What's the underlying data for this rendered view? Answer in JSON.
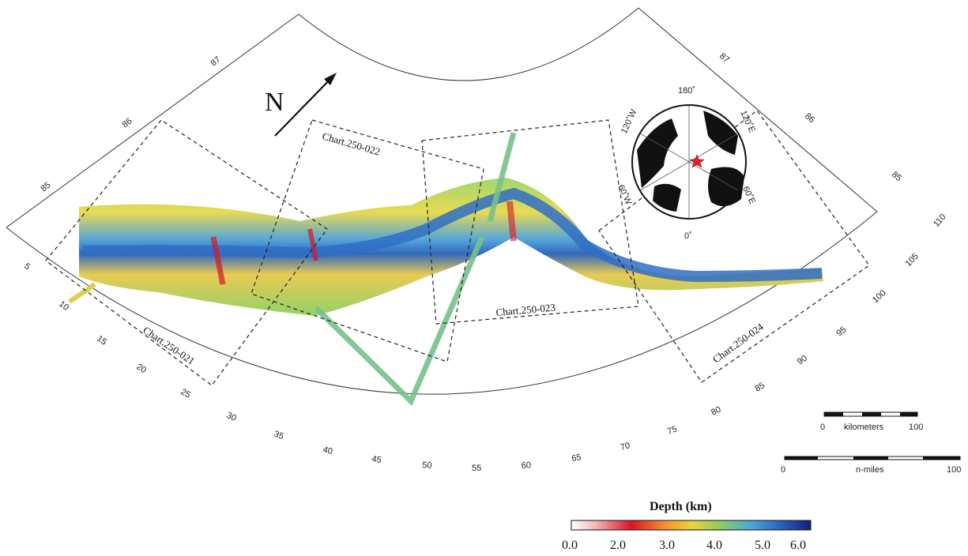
{
  "north_label": "N",
  "graticule": {
    "lat_left": [
      "87",
      "86",
      "85"
    ],
    "lat_right": [
      "87",
      "86",
      "85"
    ],
    "lon_left": [
      "5",
      "10",
      "15",
      "20",
      "25",
      "30",
      "35",
      "40",
      "45",
      "50",
      "55",
      "60",
      "65",
      "70",
      "75",
      "80",
      "85",
      "90",
      "95",
      "100",
      "105",
      "110"
    ]
  },
  "chart_boxes": [
    "Chart.250-021",
    "Chart.250-022",
    "Chart.250-023",
    "Chart.250-024"
  ],
  "inset_globe": {
    "labels": [
      "180˚",
      "120˚W",
      "120˚E",
      "60˚W",
      "60˚E",
      "0˚"
    ],
    "marker": "red-star-icon"
  },
  "scale_bars": {
    "km": {
      "start": "0",
      "end": "100",
      "unit": "kilometers"
    },
    "nm": {
      "start": "0",
      "end": "100",
      "unit": "n-miles"
    }
  },
  "legend": {
    "title": "Depth (km)",
    "ticks": [
      "0.0",
      "2.0",
      "3.0",
      "4.0",
      "5.0",
      "6.0"
    ],
    "colors": [
      "#ffffff",
      "#d8152a",
      "#f0d03a",
      "#8ccf62",
      "#4aa8d8",
      "#12207a"
    ]
  }
}
